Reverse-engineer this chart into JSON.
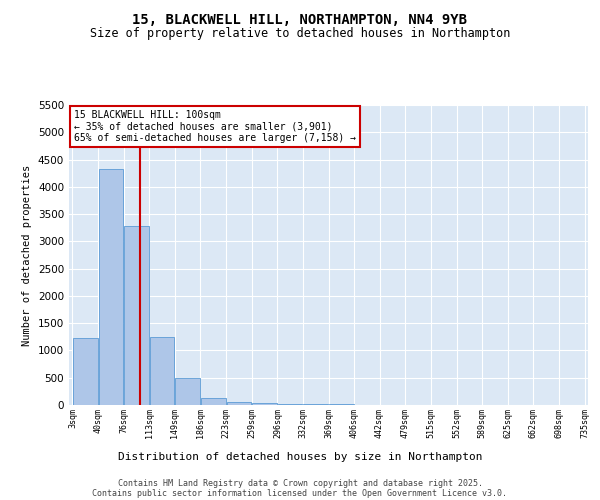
{
  "title": "15, BLACKWELL HILL, NORTHAMPTON, NN4 9YB",
  "subtitle": "Size of property relative to detached houses in Northampton",
  "xlabel": "Distribution of detached houses by size in Northampton",
  "ylabel": "Number of detached properties",
  "bin_edges": [
    3,
    40,
    76,
    113,
    149,
    186,
    223,
    259,
    296,
    332,
    369,
    406,
    442,
    479,
    515,
    552,
    589,
    625,
    662,
    698,
    735
  ],
  "bar_heights": [
    1220,
    4320,
    3280,
    1240,
    490,
    130,
    60,
    40,
    25,
    15,
    10,
    8,
    5,
    4,
    3,
    2,
    2,
    1,
    1,
    1
  ],
  "bar_color": "#aec6e8",
  "bar_edge_color": "#5b9bd5",
  "property_size": 100,
  "property_line_color": "#cc0000",
  "annotation_line1": "15 BLACKWELL HILL: 100sqm",
  "annotation_line2": "← 35% of detached houses are smaller (3,901)",
  "annotation_line3": "65% of semi-detached houses are larger (7,158) →",
  "annotation_box_color": "#cc0000",
  "ylim": [
    0,
    5500
  ],
  "yticks": [
    0,
    500,
    1000,
    1500,
    2000,
    2500,
    3000,
    3500,
    4000,
    4500,
    5000,
    5500
  ],
  "background_color": "#dce8f5",
  "footer_line1": "Contains HM Land Registry data © Crown copyright and database right 2025.",
  "footer_line2": "Contains public sector information licensed under the Open Government Licence v3.0."
}
